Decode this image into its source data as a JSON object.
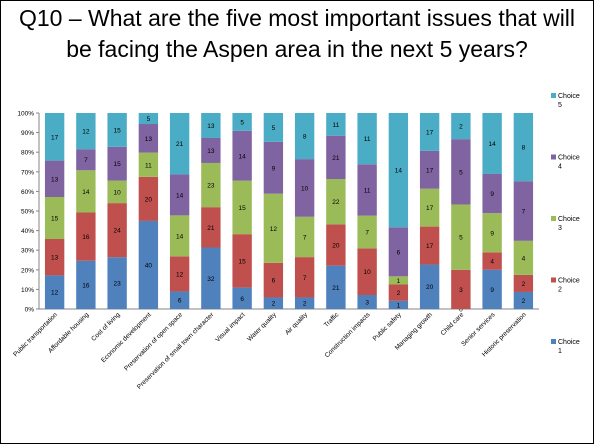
{
  "slide": {
    "title": "Q10 – What are the five most important issues that will be facing the Aspen area in the next 5 years?"
  },
  "chart_data": {
    "type": "bar",
    "stacked": "percent",
    "title": "",
    "xlabel": "",
    "ylabel": "",
    "ylim": [
      0,
      100
    ],
    "y_ticks": [
      "0%",
      "10%",
      "20%",
      "30%",
      "40%",
      "50%",
      "60%",
      "70%",
      "80%",
      "90%",
      "100%"
    ],
    "grid": false,
    "legend_position": "right",
    "categories": [
      "Public transportation",
      "Affordable housing",
      "Cost of living",
      "Economic development",
      "Preservation of open space",
      "Preservation of small town character",
      "Visual impact",
      "Water quality",
      "Air quality",
      "Traffic",
      "Construction impacts",
      "Public safety",
      "Managing growth",
      "Child care",
      "Senior services",
      "Historic preservation"
    ],
    "series": [
      {
        "name": "Choice 1",
        "color": "#4F81BD",
        "values": [
          12,
          16,
          23,
          40,
          6,
          32,
          6,
          2,
          2,
          21,
          3,
          1,
          20,
          0,
          9,
          2
        ]
      },
      {
        "name": "Choice 2",
        "color": "#C0504D",
        "values": [
          13,
          16,
          24,
          20,
          12,
          21,
          15,
          6,
          7,
          20,
          10,
          2,
          17,
          3,
          4,
          2
        ]
      },
      {
        "name": "Choice 3",
        "color": "#9BBB59",
        "values": [
          15,
          14,
          10,
          11,
          14,
          23,
          15,
          12,
          7,
          22,
          7,
          1,
          17,
          5,
          9,
          4
        ]
      },
      {
        "name": "Choice 4",
        "color": "#8064A2",
        "values": [
          13,
          7,
          15,
          13,
          14,
          13,
          14,
          9,
          10,
          21,
          11,
          6,
          17,
          5,
          9,
          7
        ]
      },
      {
        "name": "Choice 5",
        "color": "#4BACC6",
        "values": [
          17,
          12,
          15,
          5,
          21,
          13,
          5,
          5,
          8,
          11,
          11,
          14,
          17,
          2,
          14,
          8
        ]
      }
    ]
  }
}
